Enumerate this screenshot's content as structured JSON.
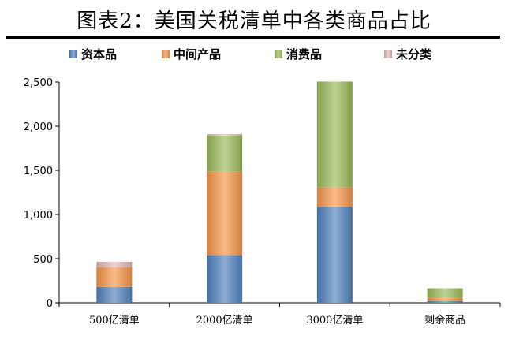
{
  "title": "图表2：美国关税清单中各类商品占比",
  "chart_data": {
    "type": "bar",
    "stacked": true,
    "categories": [
      "500亿清单",
      "2000亿清单",
      "3000亿清单",
      "剩余商品"
    ],
    "series": [
      {
        "name": "资本品",
        "values": [
          180,
          540,
          1090,
          20
        ],
        "color": "#4f81bd"
      },
      {
        "name": "中间产品",
        "values": [
          225,
          945,
          215,
          35
        ],
        "color": "#f79646"
      },
      {
        "name": "消费品",
        "values": [
          0,
          410,
          1200,
          110
        ],
        "color": "#9bbb59"
      },
      {
        "name": "未分类",
        "values": [
          60,
          15,
          0,
          0
        ],
        "color": "#e6b9b8"
      }
    ],
    "yticks": [
      "0",
      "500",
      "1,000",
      "1,500",
      "2,000",
      "2,500"
    ],
    "ylim": [
      0,
      2500
    ],
    "legend_position": "top",
    "grid": false
  }
}
